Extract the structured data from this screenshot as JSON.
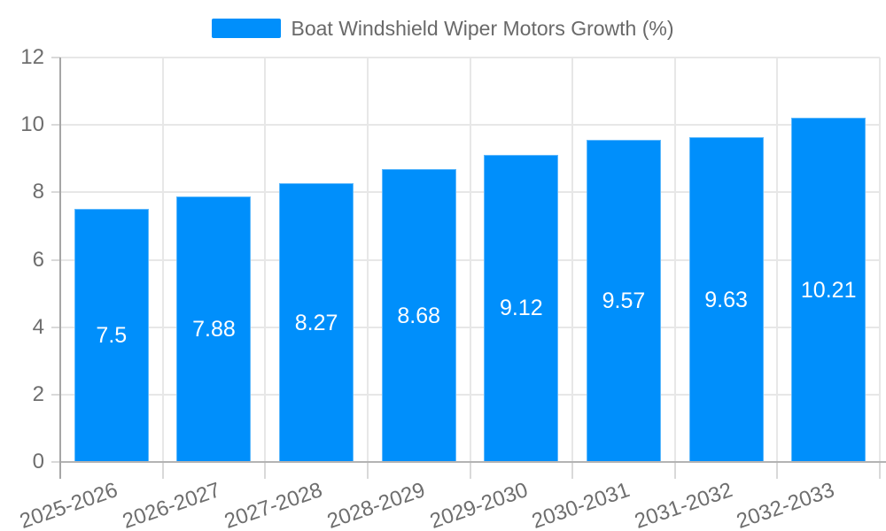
{
  "legend": {
    "label": "Boat Windshield Wiper Motors Growth (%)",
    "swatch_color": "#008FFB"
  },
  "chart_data": {
    "type": "bar",
    "title": "",
    "xlabel": "",
    "ylabel": "",
    "categories": [
      "2025-2026",
      "2026-2027",
      "2027-2028",
      "2028-2029",
      "2029-2030",
      "2030-2031",
      "2031-2032",
      "2032-2033"
    ],
    "series": [
      {
        "name": "Boat Windshield Wiper Motors Growth (%)",
        "values": [
          7.5,
          7.88,
          8.27,
          8.68,
          9.12,
          9.57,
          9.63,
          10.21
        ],
        "data_labels": [
          "7.5",
          "7.88",
          "8.27",
          "8.68",
          "9.12",
          "9.57",
          "9.63",
          "10.21"
        ]
      }
    ],
    "ylim": [
      0,
      12
    ],
    "yticks": [
      "0",
      "2",
      "4",
      "6",
      "8",
      "10",
      "12"
    ],
    "grid": true,
    "legend_position": "top",
    "colors": {
      "bar": "#008FFB",
      "bar_stroke": "#5FB9FC",
      "data_label": "#FFFFFF",
      "axis_label": "#6E6E6E",
      "legend_text": "#696969",
      "gridline": "#E7E7E7",
      "x_axis_line": "#B3B3B3",
      "y_axis_line": "#A6A6A6",
      "tick": "#D9D9D9"
    }
  }
}
